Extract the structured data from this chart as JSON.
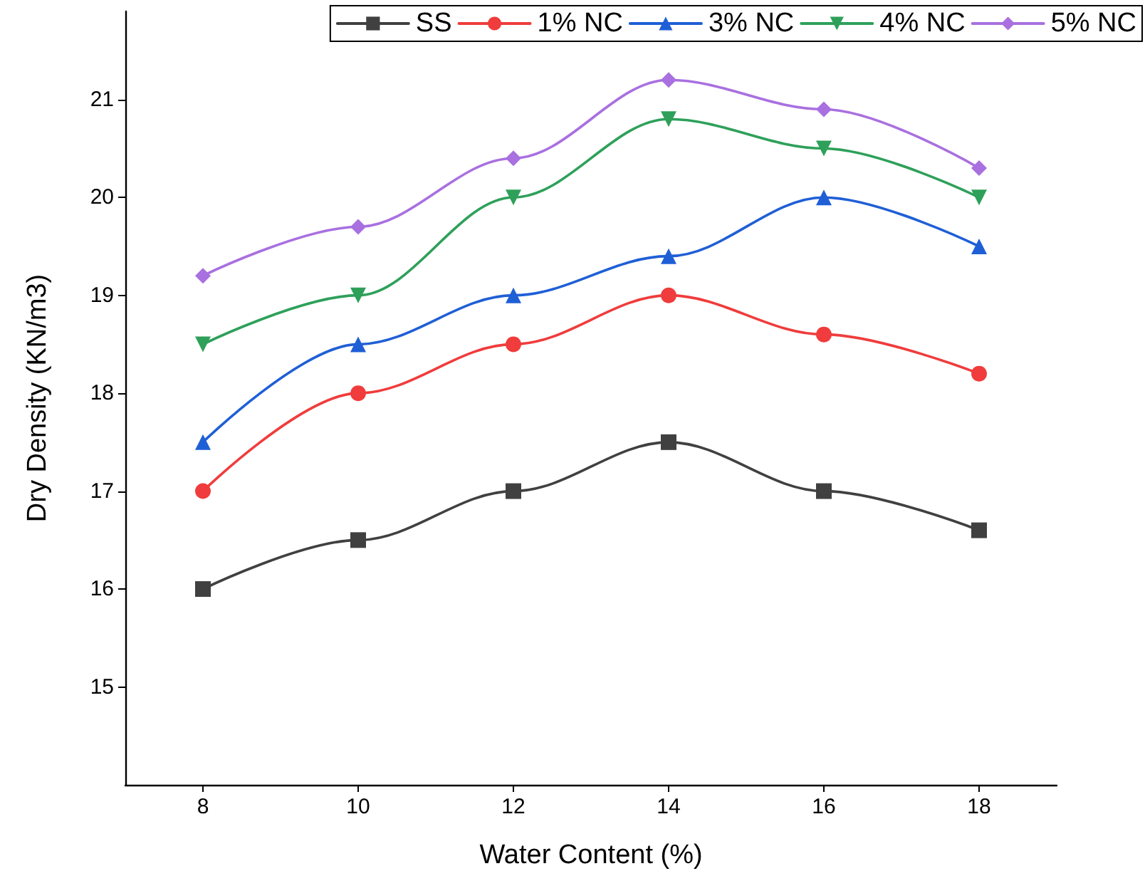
{
  "chart_data": {
    "type": "line",
    "xlabel": "Water Content (%)",
    "ylabel": "Dry Density (KN/m3)",
    "x": [
      8,
      10,
      12,
      14,
      16,
      18
    ],
    "xlim": [
      7,
      19
    ],
    "xticks": [
      8,
      10,
      12,
      14,
      16,
      18
    ],
    "ylim": [
      14,
      21.9
    ],
    "yticks": [
      15,
      16,
      17,
      18,
      19,
      20,
      21
    ],
    "grid": false,
    "legend": "top right",
    "line_style": "solid",
    "series": [
      {
        "name": "SS",
        "color": "#404040",
        "marker": "square",
        "values": [
          16,
          16.5,
          17,
          17.5,
          17,
          16.6
        ]
      },
      {
        "name": "1% NC",
        "color": "#f03c3c",
        "marker": "circle",
        "values": [
          17,
          18,
          18.5,
          19,
          18.6,
          18.2
        ]
      },
      {
        "name": "3% NC",
        "color": "#1f5fd6",
        "marker": "triangle",
        "values": [
          17.5,
          18.5,
          19,
          19.4,
          20,
          19.5
        ]
      },
      {
        "name": "4% NC",
        "color": "#2ea05a",
        "marker": "triangle-down",
        "values": [
          18.5,
          19,
          20,
          20.8,
          20.5,
          20
        ]
      },
      {
        "name": "5% NC",
        "color": "#a970e0",
        "marker": "diamond",
        "values": [
          19.2,
          19.7,
          20.4,
          21.2,
          20.9,
          20.3
        ]
      }
    ]
  }
}
